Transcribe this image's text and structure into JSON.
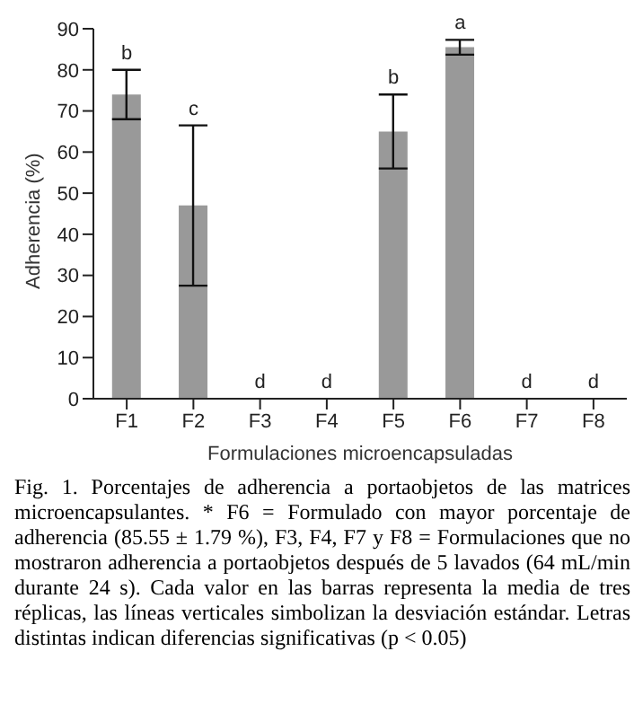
{
  "chart_data": {
    "type": "bar",
    "xlabel": "Formulaciones microencapsuladas",
    "ylabel": "Adherencia (%)",
    "categories": [
      "F1",
      "F2",
      "F3",
      "F4",
      "F5",
      "F6",
      "F7",
      "F8"
    ],
    "values": [
      74,
      47,
      0,
      0,
      65,
      85.5,
      0,
      0
    ],
    "errors": [
      6,
      19.5,
      null,
      null,
      9,
      1.8,
      null,
      null
    ],
    "color": "#999999",
    "ylim": [
      0,
      90
    ],
    "yticks": [
      0,
      10,
      20,
      30,
      40,
      50,
      60,
      70,
      80,
      90
    ],
    "grid": false,
    "annotations": [
      {
        "text": "b",
        "x": "F1",
        "y": 80
      },
      {
        "text": "c",
        "x": "F2",
        "y": 66.5
      },
      {
        "text": "d",
        "x": "F3",
        "y": 0
      },
      {
        "text": "d",
        "x": "F4",
        "y": 0
      },
      {
        "text": "b",
        "x": "F5",
        "y": 74
      },
      {
        "text": "a",
        "x": "F6",
        "y": 87.3
      },
      {
        "text": "d",
        "x": "F7",
        "y": 0
      },
      {
        "text": "d",
        "x": "F8",
        "y": 0
      },
      "Fig. 1. Porcentajes de adherencia a portaobjetos de las matrices microencapsulantes. * F6 = Formulado con mayor porcentaje de adherencia (85.55 ± 1.79 %), F3, F4, F7 y F8 = Formulaciones que no mostraron adherencia a portaobjetos después de 5 lavados (64 mL/min durante 24 s). Cada valor en las barras representa la media de tres réplicas, las líneas verticales simbolizan la desviación estándar. Letras distintas indican diferencias significativas (p < 0.05)"
    ]
  }
}
